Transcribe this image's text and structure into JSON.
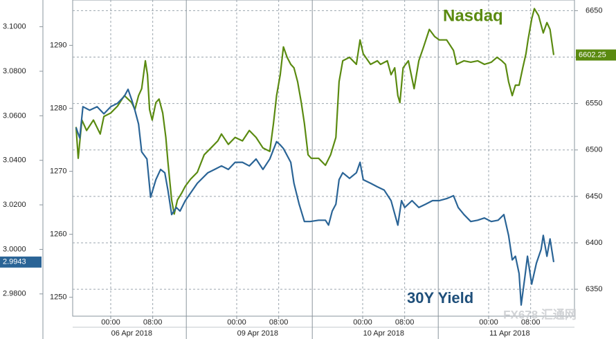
{
  "chart_data": {
    "type": "line",
    "series": [
      {
        "name": "Nasdaq",
        "color": "#5a8a10",
        "axis": "y2",
        "x": [
          -6.6,
          -6.2,
          -5.5,
          -4.6,
          -3.3,
          -2.0,
          -1.3,
          0.0,
          1.3,
          2.6,
          4.0,
          4.6,
          5.3,
          5.9,
          6.6,
          7.0,
          7.4,
          7.9,
          8.6,
          9.2,
          9.9,
          10.5,
          10.9,
          11.6,
          12.1,
          12.7,
          13.5,
          14.2,
          15.2,
          16.5,
          17.8,
          19.1,
          20.4,
          21.1,
          22.4,
          23.7,
          25.1,
          26.4,
          27.7,
          29.0,
          30.3,
          31.0,
          31.6,
          32.3,
          32.9,
          33.6,
          34.3,
          34.9,
          35.6,
          36.3,
          36.9,
          37.6,
          38.2,
          39.6,
          40.9,
          41.9,
          42.9,
          43.5,
          44.2,
          45.5,
          46.8,
          47.5,
          48.1,
          49.5,
          50.8,
          51.4,
          52.7,
          53.4,
          54.1,
          54.7,
          55.1,
          55.7,
          56.7,
          57.8,
          58.7,
          59.6,
          60.7,
          61.7,
          62.6,
          64.0,
          65.3,
          65.9,
          67.3,
          68.6,
          69.9,
          71.2,
          72.5,
          73.6,
          74.5,
          75.2,
          75.8,
          76.5,
          77.1,
          77.8,
          78.5,
          79.1,
          79.5,
          80.2,
          80.7,
          81.5,
          82.4,
          83.1,
          83.7,
          84.4
        ],
        "values": [
          6524.8,
          6491,
          6532.2,
          6521,
          6532.2,
          6517.2,
          6536,
          6539.8,
          6547.2,
          6558.5,
          6551,
          6543.5,
          6558.5,
          6566,
          6596,
          6581,
          6543.5,
          6532.2,
          6551,
          6554.8,
          6539.8,
          6513.5,
          6487.2,
          6446,
          6431,
          6446,
          6453.5,
          6461,
          6468.5,
          6476,
          6494.8,
          6502.2,
          6509.8,
          6517.2,
          6506,
          6513.5,
          6509.8,
          6521,
          6513.5,
          6502.2,
          6498.5,
          6528.5,
          6558.5,
          6581,
          6611,
          6599.8,
          6592.2,
          6588.5,
          6573.5,
          6551,
          6528.5,
          6494.8,
          6491,
          6491,
          6483.5,
          6494.8,
          6513.5,
          6573.5,
          6596,
          6599.8,
          6592.2,
          6618.5,
          6603.5,
          6592.2,
          6596,
          6592.2,
          6596,
          6581,
          6588.5,
          6558.5,
          6551,
          6588.5,
          6596,
          6566,
          6596,
          6611,
          6629.8,
          6622.2,
          6618.5,
          6618.5,
          6607.2,
          6592.2,
          6596,
          6594.5,
          6596,
          6592.2,
          6594.5,
          6599.8,
          6596,
          6592.2,
          6573.5,
          6558.5,
          6569.8,
          6569.8,
          6588.5,
          6603.5,
          6618.5,
          6641,
          6652.2,
          6644.8,
          6626,
          6637.2,
          6629.8,
          6602.25
        ]
      },
      {
        "name": "30Y Yield",
        "color": "#2a6496",
        "axis": "y",
        "x": [
          -6.6,
          -5.9,
          -5.3,
          -4.0,
          -2.6,
          -1.3,
          0.0,
          1.3,
          2.6,
          3.3,
          4.0,
          4.6,
          5.3,
          5.9,
          6.9,
          7.6,
          8.6,
          9.5,
          10.3,
          10.9,
          11.6,
          12.5,
          13.2,
          14.2,
          16.5,
          18.5,
          19.8,
          21.1,
          22.4,
          23.7,
          25.1,
          26.4,
          27.7,
          29.0,
          30.3,
          31.6,
          32.3,
          32.9,
          34.3,
          34.9,
          35.9,
          36.9,
          38.0,
          39.6,
          40.9,
          41.5,
          42.2,
          42.9,
          43.5,
          44.2,
          45.5,
          46.8,
          47.5,
          48.1,
          49.5,
          50.8,
          52.1,
          53.4,
          54.7,
          55.4,
          56.0,
          57.4,
          58.7,
          60.0,
          61.3,
          62.6,
          64.0,
          65.3,
          66.2,
          67.3,
          68.6,
          69.9,
          71.2,
          72.5,
          73.8,
          74.9,
          75.8,
          76.5,
          77.1,
          77.8,
          78.2,
          78.9,
          79.4,
          80.2,
          81.1,
          82.0,
          82.4,
          83.1,
          83.7,
          84.4
        ],
        "values": [
          3.0547,
          3.05,
          3.0641,
          3.0625,
          3.0641,
          3.0609,
          3.0641,
          3.0656,
          3.0688,
          3.0719,
          3.0672,
          3.0625,
          3.0563,
          3.0438,
          3.0406,
          3.0234,
          3.0313,
          3.0359,
          3.0344,
          3.0266,
          3.0156,
          3.0188,
          3.0172,
          3.0219,
          3.0297,
          3.0344,
          3.0359,
          3.0375,
          3.0359,
          3.0391,
          3.0391,
          3.0375,
          3.0406,
          3.0359,
          3.0406,
          3.0484,
          3.0469,
          3.0453,
          3.0391,
          3.0297,
          3.0203,
          3.0125,
          3.0125,
          3.0131,
          3.0131,
          3.0109,
          3.0172,
          3.0203,
          3.0313,
          3.0344,
          3.0319,
          3.0344,
          3.0391,
          3.0313,
          3.0297,
          3.0281,
          3.0266,
          3.0219,
          3.0109,
          3.0219,
          3.0188,
          3.0219,
          3.0188,
          3.0203,
          3.0219,
          3.0219,
          3.0228,
          3.0241,
          3.0188,
          3.0156,
          3.0125,
          3.0131,
          3.0141,
          3.0125,
          3.0131,
          3.0156,
          3.0063,
          2.9953,
          2.9969,
          2.9891,
          2.975,
          2.9875,
          2.9969,
          2.9844,
          2.9938,
          3.0,
          3.0063,
          2.9969,
          3.0047,
          2.9943
        ]
      }
    ],
    "xlim": [
      -7.25,
      88.35
    ],
    "xticks": [
      {
        "value": 0,
        "label": "00:00"
      },
      {
        "value": 8,
        "label": "08:00"
      },
      {
        "value": 24,
        "label": "00:00"
      },
      {
        "value": 32,
        "label": "08:00"
      },
      {
        "value": 48,
        "label": "00:00"
      },
      {
        "value": 56,
        "label": "08:00"
      },
      {
        "value": 72,
        "label": "00:00"
      },
      {
        "value": 80,
        "label": "08:00"
      }
    ],
    "dates": [
      "06 Apr 2018",
      "09 Apr 2018",
      "10 Apr 2018",
      "11 Apr 2018"
    ],
    "ylim": [
      2.97,
      3.112
    ],
    "yticks": [
      {
        "value": 2.98,
        "label": "2.9800"
      },
      {
        "value": 3.0,
        "label": "3.0000"
      },
      {
        "value": 3.02,
        "label": "3.0200"
      },
      {
        "value": 3.04,
        "label": "3.0400"
      },
      {
        "value": 3.06,
        "label": "3.0600"
      },
      {
        "value": 3.08,
        "label": "3.0800"
      },
      {
        "value": 3.1,
        "label": "3.1000"
      }
    ],
    "y3lim": [
      1247,
      1297.2
    ],
    "y3ticks": [
      1250,
      1260,
      1270,
      1280,
      1290
    ],
    "y2lim": [
      6321,
      6661.5
    ],
    "y2ticks": [
      6350,
      6400,
      6450,
      6500,
      6550,
      6600,
      6650
    ],
    "grid": true,
    "watermark": "FX678 汇通网"
  }
}
